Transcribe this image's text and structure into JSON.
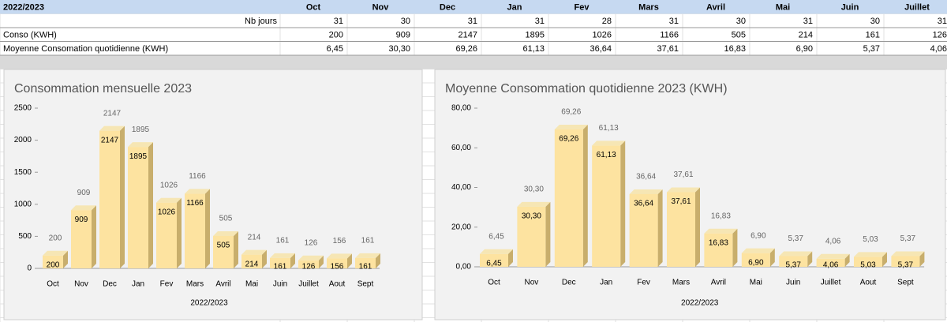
{
  "table": {
    "header": [
      "2022/2023",
      "Oct",
      "Nov",
      "Dec",
      "Jan",
      "Fev",
      "Mars",
      "Avril",
      "Mai",
      "Juin",
      "Juillet"
    ],
    "rows": [
      [
        "Nb jours",
        31,
        30,
        31,
        31,
        28,
        31,
        30,
        31,
        30,
        31
      ],
      [
        "Conso (KWH)",
        200,
        909,
        2147,
        1895,
        1026,
        1166,
        505,
        214,
        161,
        126
      ],
      [
        "Moyenne Consomation quotidienne (KWH)",
        "6,45",
        "30,30",
        "69,26",
        "61,13",
        "36,64",
        "37,61",
        "16,83",
        "6,90",
        "5,37",
        "4,06"
      ]
    ]
  },
  "chart_data": [
    {
      "type": "bar",
      "title": "Consommation mensuelle 2023",
      "x_label": "2022/2023",
      "color": "#fde3a0",
      "categories": [
        "Oct",
        "Nov",
        "Dec",
        "Jan",
        "Fev",
        "Mars",
        "Avril",
        "Mai",
        "Juin",
        "Juillet",
        "Aout",
        "Sept"
      ],
      "values": [
        200,
        909,
        2147,
        1895,
        1026,
        1166,
        505,
        214,
        161,
        126,
        156,
        161
      ],
      "ylim": [
        0,
        2500
      ],
      "yticks": [
        0,
        500,
        1000,
        1500,
        2000,
        2500
      ]
    },
    {
      "type": "bar",
      "title": "Moyenne Consommation quotidienne 2023 (KWH)",
      "x_label": "2022/2023",
      "color": "#fde3a0",
      "categories": [
        "Oct",
        "Nov",
        "Dec",
        "Jan",
        "Fev",
        "Mars",
        "Avril",
        "Mai",
        "Juin",
        "Juillet",
        "Aout",
        "Sept"
      ],
      "values": [
        6.45,
        30.3,
        69.26,
        61.13,
        36.64,
        37.61,
        16.83,
        6.9,
        5.37,
        4.06,
        5.03,
        5.37
      ],
      "value_labels": [
        "6,45",
        "30,30",
        "69,26",
        "61,13",
        "36,64",
        "37,61",
        "16,83",
        "6,90",
        "5,37",
        "4,06",
        "5,03",
        "5,37"
      ],
      "ylim": [
        0,
        80
      ],
      "yticks": [
        {
          "value": 0,
          "label": "0,00"
        },
        {
          "value": 20,
          "label": "20,00"
        },
        {
          "value": 40,
          "label": "40,00"
        },
        {
          "value": 60,
          "label": "60,00"
        },
        {
          "value": 80,
          "label": "80,00"
        }
      ]
    }
  ]
}
